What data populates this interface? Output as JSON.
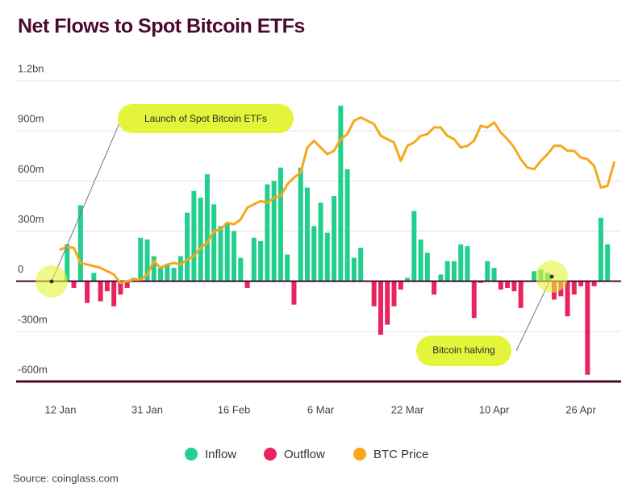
{
  "chart_data": {
    "type": "bar",
    "title": "Net Flows to Spot Bitcoin ETFs",
    "source": "Source: coinglass.com",
    "annotations": [
      "Launch of Spot Bitcoin ETFs",
      "Bitcoin halving"
    ],
    "categories": [
      "12 Jan",
      null,
      null,
      null,
      null,
      null,
      null,
      null,
      null,
      null,
      null,
      null,
      null,
      "31 Jan",
      null,
      null,
      null,
      null,
      null,
      null,
      null,
      null,
      null,
      null,
      null,
      null,
      "16 Feb",
      null,
      null,
      null,
      null,
      null,
      null,
      null,
      null,
      null,
      null,
      null,
      null,
      "6 Mar",
      null,
      null,
      null,
      null,
      null,
      null,
      null,
      null,
      null,
      null,
      null,
      null,
      "22 Mar",
      null,
      null,
      null,
      null,
      null,
      null,
      null,
      null,
      null,
      null,
      null,
      null,
      "10 Apr",
      null,
      null,
      null,
      null,
      null,
      null,
      null,
      null,
      null,
      null,
      null,
      null,
      "26 Apr",
      null,
      null,
      null,
      null,
      null
    ],
    "series": [
      {
        "name": "Inflow",
        "color": "#22cf8d",
        "values": [
          null,
          220,
          null,
          455,
          null,
          50,
          null,
          null,
          null,
          null,
          null,
          20,
          260,
          250,
          150,
          80,
          100,
          80,
          150,
          410,
          540,
          500,
          640,
          460,
          330,
          350,
          300,
          140,
          null,
          260,
          240,
          580,
          600,
          680,
          160,
          null,
          680,
          560,
          330,
          470,
          290,
          510,
          1050,
          670,
          140,
          200,
          null,
          null,
          null,
          null,
          null,
          null,
          20,
          420,
          250,
          170,
          null,
          40,
          120,
          120,
          220,
          210,
          null,
          null,
          120,
          80,
          null,
          null,
          null,
          null,
          null,
          60,
          70,
          50,
          null,
          null,
          null,
          null,
          null,
          null,
          null,
          380,
          220,
          null
        ]
      },
      {
        "name": "Outflow",
        "color": "#e8245e",
        "values": [
          null,
          null,
          -40,
          null,
          -130,
          null,
          -120,
          -60,
          -150,
          -80,
          -40,
          null,
          null,
          null,
          null,
          null,
          null,
          null,
          null,
          null,
          null,
          null,
          null,
          null,
          null,
          null,
          null,
          null,
          -40,
          null,
          null,
          null,
          null,
          null,
          null,
          -140,
          null,
          null,
          null,
          null,
          null,
          null,
          null,
          null,
          null,
          null,
          null,
          -150,
          -320,
          -260,
          -150,
          -50,
          null,
          null,
          null,
          null,
          -80,
          null,
          null,
          null,
          null,
          null,
          -220,
          -10,
          null,
          null,
          -50,
          -40,
          -60,
          -160,
          null,
          null,
          null,
          null,
          -110,
          -90,
          -210,
          -80,
          -30,
          -560,
          -30,
          null,
          null,
          null
        ]
      },
      {
        "name": "BTC Price",
        "color": "#f5a81c",
        "type": "line",
        "values": [
          190,
          205,
          200,
          110,
          100,
          90,
          80,
          60,
          40,
          -10,
          0,
          10,
          10,
          40,
          120,
          80,
          100,
          110,
          100,
          130,
          150,
          200,
          230,
          300,
          310,
          350,
          340,
          370,
          440,
          460,
          480,
          470,
          500,
          510,
          580,
          620,
          650,
          800,
          840,
          800,
          760,
          780,
          850,
          880,
          960,
          980,
          960,
          940,
          870,
          850,
          830,
          720,
          810,
          830,
          870,
          880,
          920,
          920,
          870,
          850,
          800,
          810,
          840,
          930,
          920,
          950,
          890,
          850,
          800,
          730,
          680,
          670,
          720,
          760,
          810,
          810,
          780,
          780,
          740,
          730,
          690,
          560,
          570,
          710
        ]
      }
    ],
    "ylim": [
      -600,
      1200
    ],
    "yticks": [
      {
        "value": -600,
        "label": "-600m"
      },
      {
        "value": -300,
        "label": "-300m"
      },
      0,
      {
        "value": 300,
        "label": "300m"
      },
      {
        "value": 600,
        "label": "600m"
      },
      {
        "value": 900,
        "label": "900m"
      },
      {
        "value": 1200,
        "label": "1.2bn"
      }
    ],
    "grid": true
  }
}
